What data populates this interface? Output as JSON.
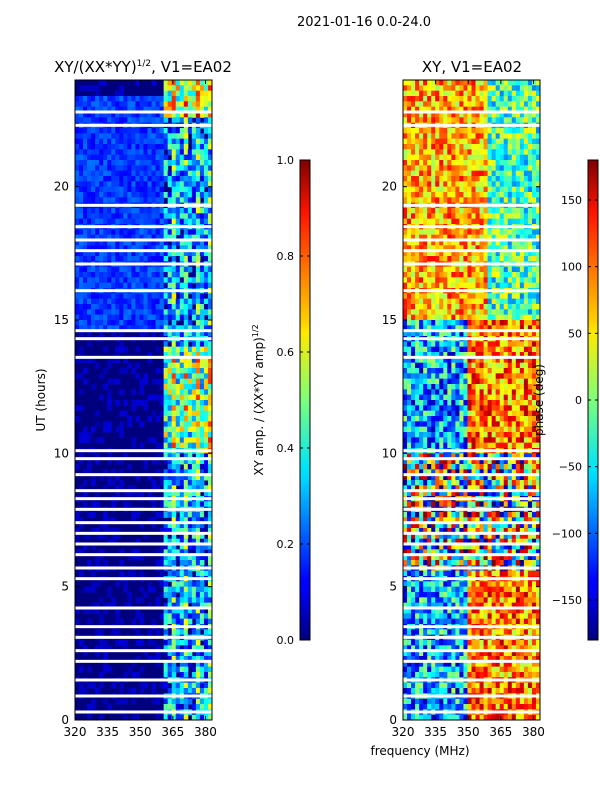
{
  "suptitle": "2021-01-16 0.0-24.0",
  "chart_data": [
    {
      "type": "heatmap",
      "title_main": "XY/(XX*YY)",
      "title_exp": "1/2",
      "title_tail": ", V1=EA02",
      "xlabel": "",
      "ylabel": "UT (hours)",
      "xlim": [
        320,
        383
      ],
      "ylim": [
        0,
        24
      ],
      "xticks": [
        320,
        335,
        350,
        365,
        380
      ],
      "yticks": [
        0,
        5,
        10,
        15,
        20
      ],
      "colorbar": {
        "label_main": "XY amp. / (XX*YY amp)",
        "label_exp": "1/2",
        "range": [
          0.0,
          1.0
        ],
        "ticks": [
          "0.0",
          "0.2",
          "0.4",
          "0.6",
          "0.8",
          "1.0"
        ],
        "tick_values": [
          0.0,
          0.2,
          0.4,
          0.6,
          0.8,
          1.0
        ],
        "colormap": "jet"
      },
      "blank_rows_hours": [
        0.3,
        0.9,
        1.5,
        2.2,
        2.6,
        3.1,
        3.5,
        4.2,
        5.3,
        5.7,
        6.2,
        6.6,
        7.0,
        7.4,
        7.9,
        8.3,
        8.6,
        9.2,
        9.8,
        10.1,
        13.6,
        14.3,
        14.6,
        16.1,
        17.1,
        17.6,
        18.0,
        18.5,
        19.3,
        22.3,
        22.8
      ]
    },
    {
      "type": "heatmap",
      "title": "XY, V1=EA02",
      "xlabel": "frequency (MHz)",
      "ylabel": "",
      "xlim": [
        320,
        383
      ],
      "ylim": [
        0,
        24
      ],
      "xticks": [
        320,
        335,
        350,
        365,
        380
      ],
      "yticks": [
        0,
        5,
        10,
        15,
        20
      ],
      "colorbar": {
        "label": "phase (deg)",
        "range": [
          -180,
          180
        ],
        "ticks": [
          "−150",
          "−100",
          "−50",
          "0",
          "50",
          "100",
          "150"
        ],
        "tick_values": [
          -150,
          -100,
          -50,
          0,
          50,
          100,
          150
        ],
        "colormap": "jet"
      },
      "blank_rows_hours": [
        0.3,
        0.9,
        1.5,
        2.2,
        2.6,
        3.1,
        3.5,
        4.2,
        5.3,
        5.7,
        6.2,
        6.6,
        7.0,
        7.4,
        7.9,
        8.3,
        8.6,
        9.2,
        9.8,
        10.1,
        13.6,
        14.3,
        14.6,
        16.1,
        17.1,
        17.6,
        18.0,
        18.5,
        19.3,
        22.3,
        22.8
      ]
    }
  ]
}
